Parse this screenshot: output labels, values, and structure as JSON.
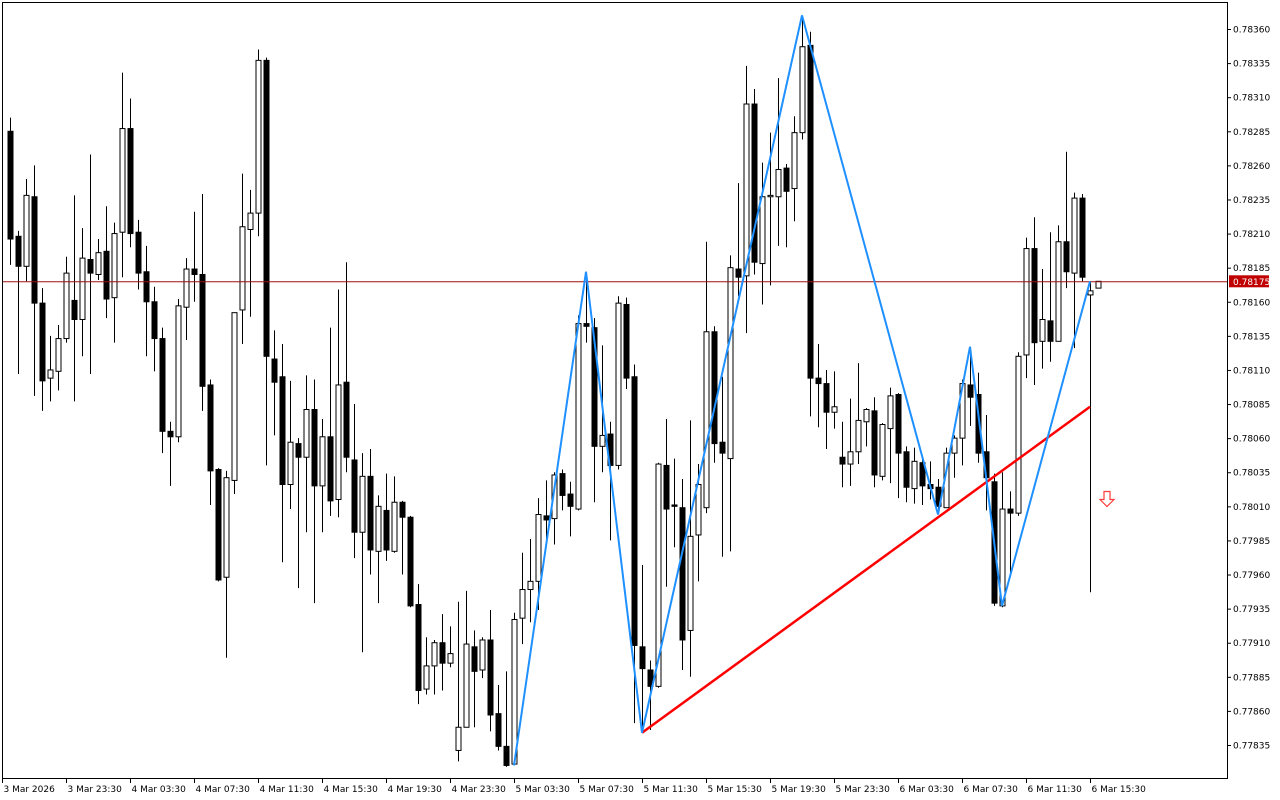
{
  "chart_data": {
    "type": "candlestick",
    "title": "",
    "xlabel": "",
    "ylabel": "",
    "ylim": [
      0.77812,
      0.78385
    ],
    "grid": false,
    "colors": {
      "bull_body": "#ffffff",
      "bear_body": "#000000",
      "outline": "#000000",
      "zigzag": "#1e90ff",
      "trendline": "#ff0000",
      "bid_line": "#a01010",
      "price_label_bg": "#c00000",
      "sell_arrow": "#ff3b3b"
    },
    "y_ticks": [
      "0.78360",
      "0.78335",
      "0.78310",
      "0.78285",
      "0.78260",
      "0.78235",
      "0.78210",
      "0.78185",
      "0.78160",
      "0.78135",
      "0.78110",
      "0.78085",
      "0.78060",
      "0.78035",
      "0.78010",
      "0.77985",
      "0.77960",
      "0.77935",
      "0.77910",
      "0.77885",
      "0.77860",
      "0.77835"
    ],
    "x_ticks": [
      "3 Mar 2026",
      "3 Mar 23:30",
      "4 Mar 03:30",
      "4 Mar 07:30",
      "4 Mar 11:30",
      "4 Mar 15:30",
      "4 Mar 19:30",
      "4 Mar 23:30",
      "5 Mar 03:30",
      "5 Mar 07:30",
      "5 Mar 11:30",
      "5 Mar 15:30",
      "5 Mar 19:30",
      "5 Mar 23:30",
      "6 Mar 03:30",
      "6 Mar 07:30",
      "6 Mar 11:30",
      "6 Mar 15:30"
    ],
    "current_price": "0.78175",
    "ohlc_columns": [
      "open",
      "high",
      "low",
      "close"
    ],
    "candles": [
      [
        0.78285,
        0.78295,
        0.78187,
        0.78206
      ],
      [
        0.78208,
        0.78212,
        0.78107,
        0.78186
      ],
      [
        0.78186,
        0.7825,
        0.78175,
        0.78238
      ],
      [
        0.78237,
        0.7826,
        0.78091,
        0.78159
      ],
      [
        0.78159,
        0.7817,
        0.7808,
        0.78102
      ],
      [
        0.78104,
        0.78135,
        0.78087,
        0.7811
      ],
      [
        0.78109,
        0.78143,
        0.78095,
        0.78133
      ],
      [
        0.78133,
        0.78193,
        0.7813,
        0.78181
      ],
      [
        0.78161,
        0.78238,
        0.78087,
        0.78147
      ],
      [
        0.78147,
        0.78214,
        0.7812,
        0.78192
      ],
      [
        0.78191,
        0.78268,
        0.78107,
        0.78181
      ],
      [
        0.7818,
        0.78206,
        0.78176,
        0.78196
      ],
      [
        0.78197,
        0.7823,
        0.78148,
        0.78162
      ],
      [
        0.78163,
        0.78218,
        0.7813,
        0.7821
      ],
      [
        0.78211,
        0.78328,
        0.78178,
        0.78287
      ],
      [
        0.78287,
        0.78309,
        0.782,
        0.7821
      ],
      [
        0.78211,
        0.7822,
        0.78169,
        0.78181
      ],
      [
        0.78182,
        0.78201,
        0.7812,
        0.7816
      ],
      [
        0.7816,
        0.78171,
        0.78109,
        0.78133
      ],
      [
        0.78133,
        0.78141,
        0.78049,
        0.78065
      ],
      [
        0.78065,
        0.78072,
        0.78025,
        0.78061
      ],
      [
        0.78061,
        0.78162,
        0.78057,
        0.78157
      ],
      [
        0.78156,
        0.78192,
        0.78132,
        0.78184
      ],
      [
        0.78184,
        0.78226,
        0.7816,
        0.7818
      ],
      [
        0.7818,
        0.78239,
        0.7808,
        0.78098
      ],
      [
        0.78099,
        0.78103,
        0.78011,
        0.78036
      ],
      [
        0.78037,
        0.78038,
        0.77955,
        0.77956
      ],
      [
        0.77958,
        0.78036,
        0.77899,
        0.78031
      ],
      [
        0.78029,
        0.78152,
        0.78019,
        0.78152
      ],
      [
        0.78154,
        0.78254,
        0.78129,
        0.78215
      ],
      [
        0.78213,
        0.78242,
        0.78149,
        0.78225
      ],
      [
        0.78225,
        0.78345,
        0.78208,
        0.78337
      ],
      [
        0.78337,
        0.78339,
        0.7804,
        0.7812
      ],
      [
        0.78118,
        0.78139,
        0.78062,
        0.78101
      ],
      [
        0.78105,
        0.78129,
        0.77969,
        0.78026
      ],
      [
        0.78026,
        0.78102,
        0.78008,
        0.78057
      ],
      [
        0.78056,
        0.7806,
        0.7795,
        0.78046
      ],
      [
        0.78046,
        0.78106,
        0.77991,
        0.78081
      ],
      [
        0.78081,
        0.78103,
        0.77939,
        0.78025
      ],
      [
        0.78025,
        0.78074,
        0.77991,
        0.78061
      ],
      [
        0.78061,
        0.78141,
        0.78003,
        0.78014
      ],
      [
        0.78015,
        0.78169,
        0.78002,
        0.78099
      ],
      [
        0.78101,
        0.78189,
        0.78035,
        0.78046
      ],
      [
        0.78044,
        0.78085,
        0.77972,
        0.77991
      ],
      [
        0.77991,
        0.78049,
        0.77903,
        0.78032
      ],
      [
        0.78032,
        0.78052,
        0.7796,
        0.77978
      ],
      [
        0.77977,
        0.78018,
        0.77939,
        0.7801
      ],
      [
        0.78007,
        0.78034,
        0.7797,
        0.77978
      ],
      [
        0.77977,
        0.78032,
        0.77976,
        0.78013
      ],
      [
        0.78013,
        0.78014,
        0.7796,
        0.78002
      ],
      [
        0.78002,
        0.78003,
        0.77936,
        0.77937
      ],
      [
        0.77938,
        0.77953,
        0.77865,
        0.77875
      ],
      [
        0.77876,
        0.77914,
        0.77872,
        0.77893
      ],
      [
        0.77893,
        0.77912,
        0.77872,
        0.7791
      ],
      [
        0.7791,
        0.77931,
        0.77875,
        0.77895
      ],
      [
        0.77895,
        0.77922,
        0.77892,
        0.77902
      ],
      [
        0.77831,
        0.7794,
        0.77823,
        0.77848
      ],
      [
        0.77848,
        0.77948,
        0.77848,
        0.77909
      ],
      [
        0.77907,
        0.77919,
        0.77848,
        0.77889
      ],
      [
        0.7789,
        0.77914,
        0.77884,
        0.77912
      ],
      [
        0.77912,
        0.77934,
        0.77845,
        0.77857
      ],
      [
        0.77858,
        0.77879,
        0.77831,
        0.77834
      ],
      [
        0.77834,
        0.77889,
        0.77819,
        0.7782
      ],
      [
        0.77821,
        0.77932,
        0.7782,
        0.77927
      ],
      [
        0.77928,
        0.77976,
        0.77909,
        0.77949
      ],
      [
        0.77949,
        0.77986,
        0.77925,
        0.77955
      ],
      [
        0.77955,
        0.78016,
        0.77934,
        0.78004
      ],
      [
        0.78003,
        0.78029,
        0.77985,
        0.78
      ],
      [
        0.78001,
        0.78035,
        0.77982,
        0.78033
      ],
      [
        0.78034,
        0.78037,
        0.78007,
        0.78018
      ],
      [
        0.78019,
        0.78028,
        0.77988,
        0.7801
      ],
      [
        0.78008,
        0.7815,
        0.78007,
        0.78144
      ],
      [
        0.78144,
        0.78182,
        0.7813,
        0.78142
      ],
      [
        0.78141,
        0.78148,
        0.78013,
        0.78054
      ],
      [
        0.78054,
        0.78128,
        0.78035,
        0.78062
      ],
      [
        0.78063,
        0.78072,
        0.77985,
        0.7804
      ],
      [
        0.7804,
        0.78164,
        0.78037,
        0.78159
      ],
      [
        0.78158,
        0.78163,
        0.78096,
        0.78104
      ],
      [
        0.78105,
        0.78114,
        0.77851,
        0.77908
      ],
      [
        0.77907,
        0.77967,
        0.77844,
        0.77891
      ],
      [
        0.7789,
        0.77897,
        0.77846,
        0.77878
      ],
      [
        0.77878,
        0.78042,
        0.77877,
        0.78041
      ],
      [
        0.7804,
        0.78074,
        0.77951,
        0.78008
      ],
      [
        0.78011,
        0.78045,
        0.7798,
        0.7801
      ],
      [
        0.78009,
        0.7803,
        0.7789,
        0.77912
      ],
      [
        0.77919,
        0.78073,
        0.77885,
        0.77988
      ],
      [
        0.77989,
        0.78041,
        0.77955,
        0.78026
      ],
      [
        0.78009,
        0.78204,
        0.78005,
        0.78138
      ],
      [
        0.78138,
        0.78142,
        0.78042,
        0.78056
      ],
      [
        0.78057,
        0.78105,
        0.77973,
        0.78049
      ],
      [
        0.78045,
        0.78194,
        0.77977,
        0.78185
      ],
      [
        0.78184,
        0.78247,
        0.78164,
        0.78178
      ],
      [
        0.78179,
        0.78333,
        0.78137,
        0.78305
      ],
      [
        0.78305,
        0.78316,
        0.7818,
        0.78189
      ],
      [
        0.78188,
        0.78262,
        0.78158,
        0.78237
      ],
      [
        0.78237,
        0.78284,
        0.78172,
        0.78238
      ],
      [
        0.78237,
        0.78324,
        0.78201,
        0.78257
      ],
      [
        0.78258,
        0.78261,
        0.782,
        0.78241
      ],
      [
        0.78243,
        0.78296,
        0.78219,
        0.78284
      ],
      [
        0.78284,
        0.7837,
        0.78279,
        0.78347
      ],
      [
        0.78348,
        0.78358,
        0.78076,
        0.78104
      ],
      [
        0.78104,
        0.78129,
        0.78068,
        0.781
      ],
      [
        0.781,
        0.7811,
        0.78052,
        0.78079
      ],
      [
        0.78079,
        0.78109,
        0.78067,
        0.78083
      ],
      [
        0.78046,
        0.78072,
        0.78024,
        0.78041
      ],
      [
        0.78041,
        0.78089,
        0.78025,
        0.7805
      ],
      [
        0.7805,
        0.78115,
        0.78041,
        0.78073
      ],
      [
        0.78072,
        0.78082,
        0.78054,
        0.78081
      ],
      [
        0.7808,
        0.7809,
        0.78024,
        0.78033
      ],
      [
        0.78032,
        0.78071,
        0.78029,
        0.7807
      ],
      [
        0.78067,
        0.78097,
        0.78027,
        0.78091
      ],
      [
        0.78092,
        0.78093,
        0.78016,
        0.78049
      ],
      [
        0.7805,
        0.78054,
        0.78013,
        0.78024
      ],
      [
        0.78023,
        0.78053,
        0.78012,
        0.78043
      ],
      [
        0.78042,
        0.78046,
        0.78011,
        0.78025
      ],
      [
        0.78026,
        0.78043,
        0.78015,
        0.78023
      ],
      [
        0.78024,
        0.7803,
        0.78004,
        0.7801
      ],
      [
        0.78009,
        0.78053,
        0.78009,
        0.78049
      ],
      [
        0.78049,
        0.78062,
        0.78031,
        0.7806
      ],
      [
        0.7806,
        0.78103,
        0.7804,
        0.781
      ],
      [
        0.78099,
        0.78127,
        0.78069,
        0.7809
      ],
      [
        0.78092,
        0.78108,
        0.78042,
        0.78049
      ],
      [
        0.7805,
        0.78077,
        0.78007,
        0.78031
      ],
      [
        0.78028,
        0.78034,
        0.77937,
        0.77939
      ],
      [
        0.77937,
        0.78035,
        0.77936,
        0.78008
      ],
      [
        0.78008,
        0.78021,
        0.7796,
        0.78005
      ],
      [
        0.78005,
        0.78123,
        0.78003,
        0.7812
      ],
      [
        0.78121,
        0.78207,
        0.78104,
        0.78199
      ],
      [
        0.78199,
        0.78222,
        0.78099,
        0.7813
      ],
      [
        0.78131,
        0.78184,
        0.78111,
        0.78147
      ],
      [
        0.78146,
        0.78211,
        0.78116,
        0.78131
      ],
      [
        0.78131,
        0.78216,
        0.78131,
        0.78204
      ],
      [
        0.78204,
        0.7827,
        0.7817,
        0.78182
      ],
      [
        0.78181,
        0.7824,
        0.78126,
        0.78236
      ],
      [
        0.78236,
        0.78239,
        0.78175,
        0.78178
      ],
      [
        0.78165,
        0.78175,
        0.77947,
        0.78168
      ],
      [
        0.7817,
        0.78175,
        0.7817,
        0.78175
      ]
    ],
    "zigzag": [
      {
        "time": "5 Mar 03:30",
        "price": 0.7782
      },
      {
        "time": "5 Mar 08:00",
        "price": 0.78182
      },
      {
        "time": "5 Mar 11:30",
        "price": 0.77844
      },
      {
        "time": "5 Mar 21:30",
        "price": 0.7837
      },
      {
        "time": "6 Mar 06:00",
        "price": 0.78004
      },
      {
        "time": "6 Mar 08:00",
        "price": 0.78127
      },
      {
        "time": "6 Mar 10:00",
        "price": 0.77937
      },
      {
        "time": "6 Mar 15:30",
        "price": 0.78175
      }
    ],
    "trendline": [
      {
        "time": "5 Mar 11:30",
        "price": 0.77844
      },
      {
        "time": "6 Mar 15:30",
        "price": 0.78083
      }
    ],
    "sell_arrow": {
      "time": "6 Mar 16:30",
      "price": 0.78015,
      "icon": "down-arrow-outline"
    }
  }
}
